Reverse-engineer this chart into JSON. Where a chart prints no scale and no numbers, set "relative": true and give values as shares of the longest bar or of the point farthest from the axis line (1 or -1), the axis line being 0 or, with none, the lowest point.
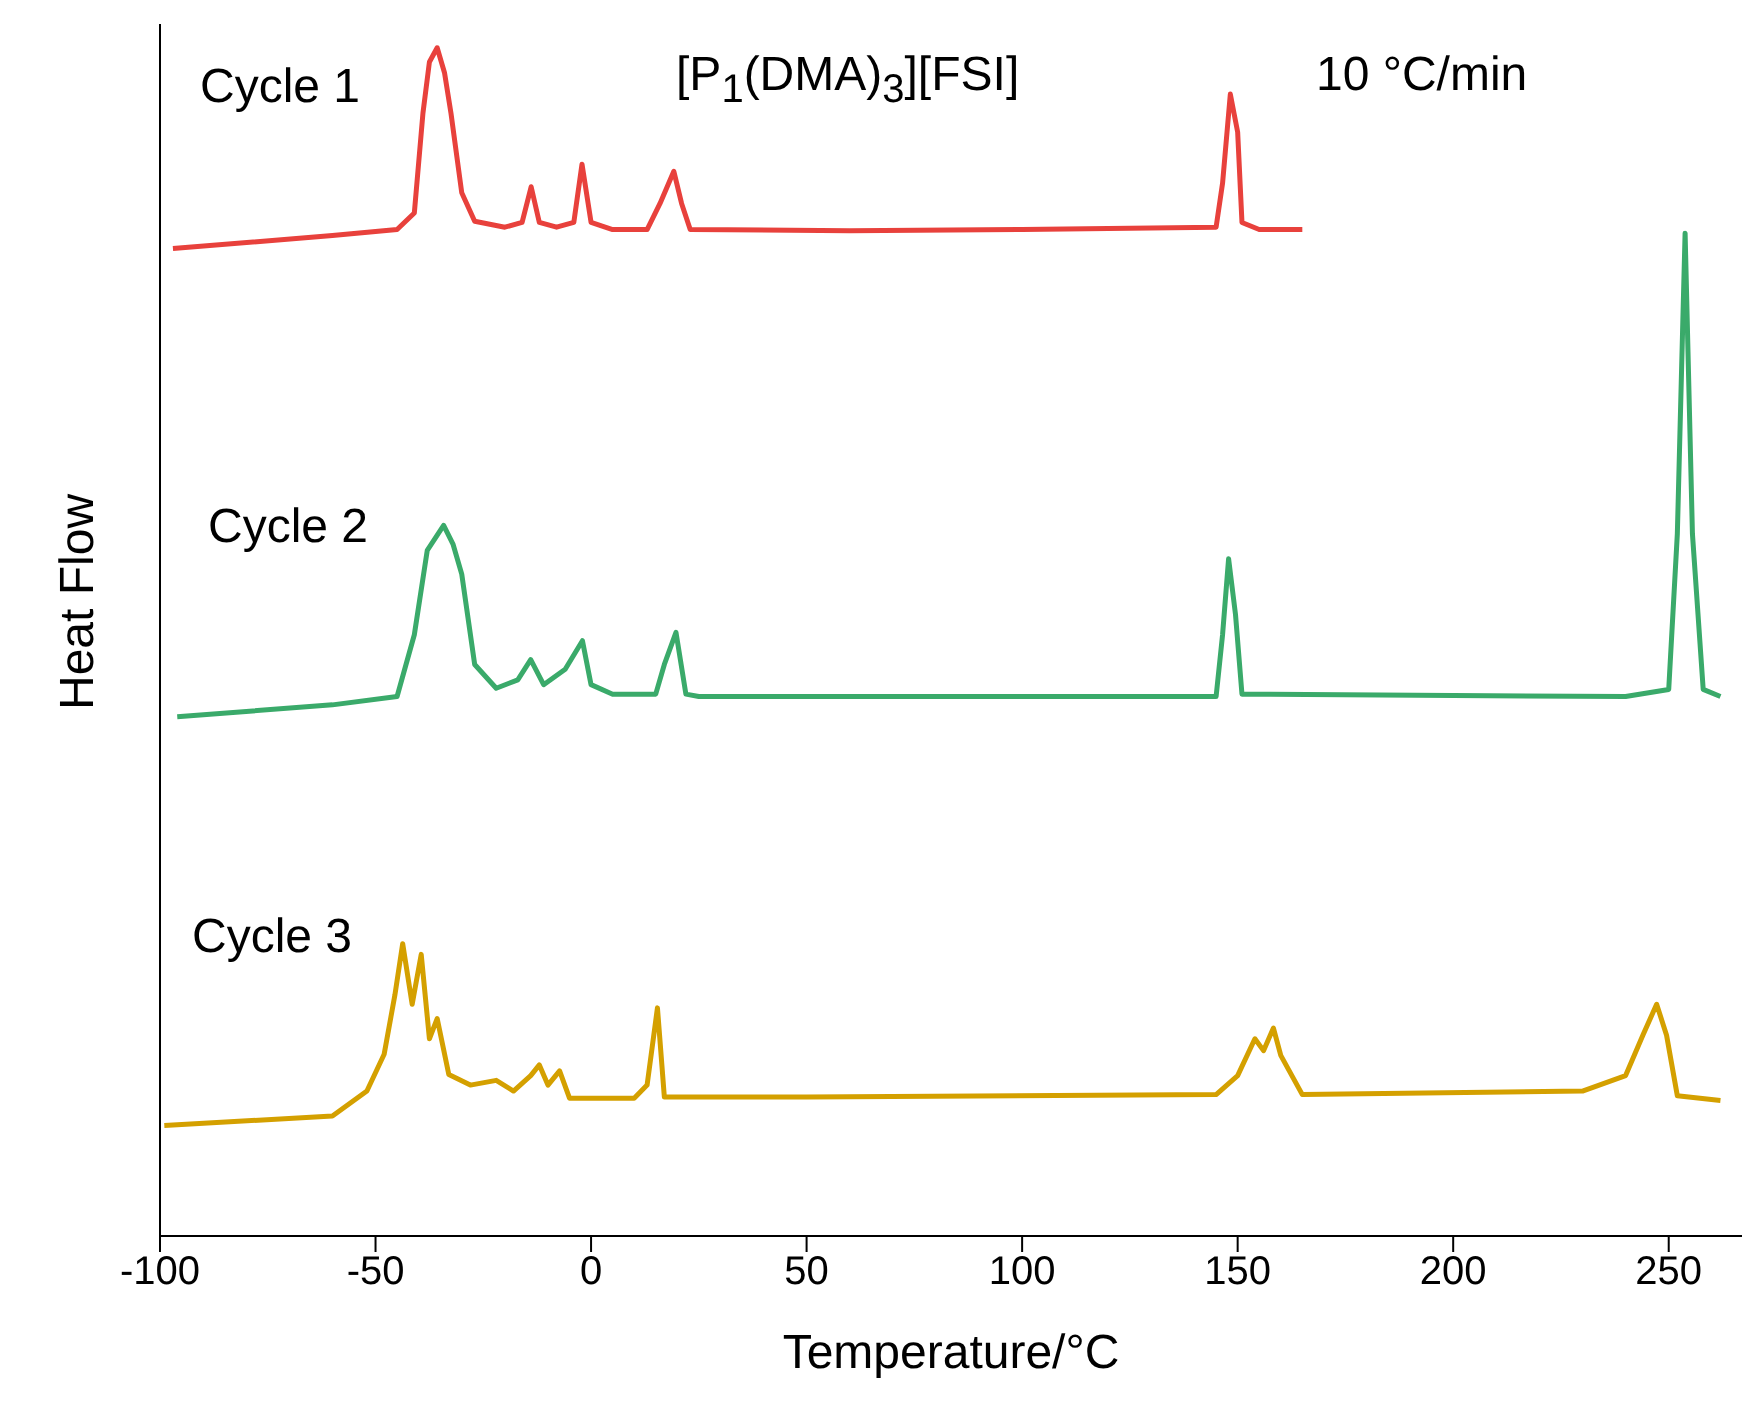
{
  "chart_data": {
    "type": "line",
    "relative": true,
    "xlabel": "Temperature/°C",
    "ylabel": "Heat Flow",
    "xlim": [
      -100,
      267
    ],
    "xticks": [
      -100,
      -50,
      0,
      50,
      100,
      150,
      200,
      250
    ],
    "grid": false,
    "marker": "none",
    "line_style": "solid",
    "annotations": [
      "Cycle 1",
      "Cycle 2",
      "Cycle 3",
      "[P$_{1}$(DMA)$_{3}$][FSI]",
      "10 °C/min"
    ],
    "series": [
      {
        "color": "#e8413c",
        "x": [
          -97,
          -60,
          -45,
          -41,
          -39,
          -37.5,
          -35.7,
          -34,
          -32.5,
          -30,
          -27,
          -20,
          -16,
          -13.9,
          -12,
          -8,
          -4,
          -2.1,
          0,
          5,
          13,
          16,
          19.2,
          21,
          23,
          60,
          100,
          145,
          146.5,
          148.3,
          150,
          151,
          155,
          165
        ],
        "values": [
          0.831,
          0.842,
          0.847,
          0.861,
          0.945,
          0.988,
          1.0,
          0.979,
          0.945,
          0.878,
          0.854,
          0.849,
          0.853,
          0.883,
          0.853,
          0.849,
          0.853,
          0.902,
          0.853,
          0.847,
          0.847,
          0.869,
          0.896,
          0.869,
          0.847,
          0.846,
          0.847,
          0.849,
          0.886,
          0.961,
          0.929,
          0.853,
          0.847,
          0.847
        ]
      },
      {
        "color": "#3aaa6a",
        "x": [
          -96,
          -60,
          -45,
          -41,
          -38,
          -34.2,
          -32,
          -30,
          -27,
          -22,
          -17,
          -14,
          -11,
          -6,
          -2,
          0,
          5,
          15,
          17,
          19.7,
          22,
          25,
          100,
          145,
          146.5,
          147.9,
          149.5,
          151,
          240,
          250,
          252,
          253.8,
          255.5,
          258,
          262
        ],
        "values": [
          0.437,
          0.447,
          0.454,
          0.506,
          0.577,
          0.598,
          0.582,
          0.557,
          0.481,
          0.461,
          0.468,
          0.485,
          0.464,
          0.477,
          0.501,
          0.464,
          0.456,
          0.456,
          0.481,
          0.508,
          0.456,
          0.454,
          0.454,
          0.454,
          0.506,
          0.57,
          0.523,
          0.456,
          0.454,
          0.46,
          0.591,
          0.844,
          0.591,
          0.46,
          0.454
        ]
      },
      {
        "color": "#d4a000",
        "x": [
          -99,
          -60,
          -52,
          -48,
          -45.5,
          -43.7,
          -41.5,
          -39.4,
          -37.5,
          -35.7,
          -33,
          -28,
          -22,
          -18,
          -14,
          -12,
          -10,
          -7.3,
          -5,
          10,
          13,
          15.4,
          17,
          50,
          145,
          150,
          154,
          156,
          158.3,
          160,
          165,
          230,
          240,
          244,
          247.2,
          249.5,
          252,
          262
        ],
        "values": [
          0.093,
          0.101,
          0.122,
          0.153,
          0.203,
          0.246,
          0.195,
          0.237,
          0.166,
          0.183,
          0.136,
          0.127,
          0.131,
          0.122,
          0.135,
          0.144,
          0.127,
          0.139,
          0.116,
          0.116,
          0.127,
          0.192,
          0.117,
          0.117,
          0.119,
          0.135,
          0.166,
          0.156,
          0.175,
          0.152,
          0.119,
          0.122,
          0.135,
          0.169,
          0.195,
          0.169,
          0.118,
          0.114
        ]
      }
    ]
  }
}
